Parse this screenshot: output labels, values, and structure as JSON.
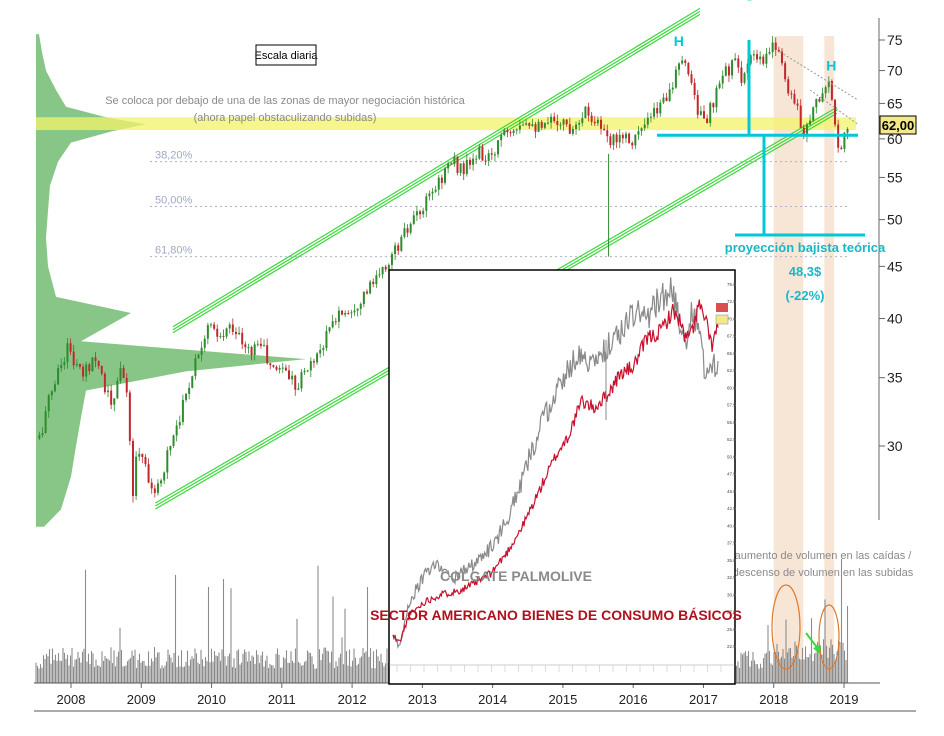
{
  "chart_data": {
    "type": "candlestick",
    "scale": "log",
    "y_axis_ticks": [
      30,
      35,
      40,
      45,
      50,
      55,
      60,
      65,
      70,
      75
    ],
    "x_axis_labels": [
      "2008",
      "2009",
      "2010",
      "2011",
      "2012",
      "2013",
      "2014",
      "2015",
      "2016",
      "2017",
      "2018",
      "2019"
    ],
    "last_price_label": "62,00",
    "colors": {
      "up": "#2e8b2e",
      "down": "#c0282d",
      "channel": "#3cd83c",
      "neckline": "#00c8d4",
      "highlight": "#f3f36a",
      "volume_profile": "#5fb35f",
      "volume": "#8c8c8c",
      "shade": "#e8b48a"
    },
    "price_path": [
      {
        "t": 2007.55,
        "p": 30.5
      },
      {
        "t": 2007.75,
        "p": 34.5
      },
      {
        "t": 2007.95,
        "p": 37.5
      },
      {
        "t": 2008.15,
        "p": 35
      },
      {
        "t": 2008.35,
        "p": 37
      },
      {
        "t": 2008.5,
        "p": 34
      },
      {
        "t": 2008.6,
        "p": 32.5
      },
      {
        "t": 2008.72,
        "p": 36.5
      },
      {
        "t": 2008.8,
        "p": 33
      },
      {
        "t": 2008.88,
        "p": 27
      },
      {
        "t": 2008.95,
        "p": 30
      },
      {
        "t": 2009.05,
        "p": 29
      },
      {
        "t": 2009.2,
        "p": 26.5
      },
      {
        "t": 2009.4,
        "p": 30
      },
      {
        "t": 2009.6,
        "p": 33
      },
      {
        "t": 2009.8,
        "p": 37
      },
      {
        "t": 2009.95,
        "p": 39.5
      },
      {
        "t": 2010.1,
        "p": 38
      },
      {
        "t": 2010.3,
        "p": 39.5
      },
      {
        "t": 2010.5,
        "p": 37
      },
      {
        "t": 2010.7,
        "p": 38
      },
      {
        "t": 2010.85,
        "p": 35.5
      },
      {
        "t": 2011.0,
        "p": 36
      },
      {
        "t": 2011.2,
        "p": 34.5
      },
      {
        "t": 2011.4,
        "p": 36
      },
      {
        "t": 2011.6,
        "p": 38
      },
      {
        "t": 2011.8,
        "p": 40.5
      },
      {
        "t": 2012.0,
        "p": 41
      },
      {
        "t": 2012.2,
        "p": 42.5
      },
      {
        "t": 2012.4,
        "p": 44
      },
      {
        "t": 2012.6,
        "p": 46.5
      },
      {
        "t": 2012.8,
        "p": 49
      },
      {
        "t": 2013.0,
        "p": 51
      },
      {
        "t": 2013.2,
        "p": 54
      },
      {
        "t": 2013.4,
        "p": 57
      },
      {
        "t": 2013.6,
        "p": 56
      },
      {
        "t": 2013.8,
        "p": 58
      },
      {
        "t": 2014.0,
        "p": 57
      },
      {
        "t": 2014.1,
        "p": 61
      },
      {
        "t": 2014.3,
        "p": 62
      },
      {
        "t": 2014.5,
        "p": 63
      },
      {
        "t": 2014.7,
        "p": 61
      },
      {
        "t": 2014.9,
        "p": 63
      },
      {
        "t": 2015.1,
        "p": 61.5
      },
      {
        "t": 2015.3,
        "p": 64
      },
      {
        "t": 2015.5,
        "p": 62.5
      },
      {
        "t": 2015.65,
        "p": 59
      },
      {
        "t": 2015.8,
        "p": 61
      },
      {
        "t": 2016.0,
        "p": 60
      },
      {
        "t": 2016.2,
        "p": 62
      },
      {
        "t": 2016.4,
        "p": 65
      },
      {
        "t": 2016.55,
        "p": 68
      },
      {
        "t": 2016.7,
        "p": 71
      },
      {
        "t": 2016.8,
        "p": 70
      },
      {
        "t": 2016.9,
        "p": 65
      },
      {
        "t": 2017.0,
        "p": 62
      },
      {
        "t": 2017.15,
        "p": 65
      },
      {
        "t": 2017.3,
        "p": 70
      },
      {
        "t": 2017.45,
        "p": 71
      },
      {
        "t": 2017.55,
        "p": 69
      },
      {
        "t": 2017.7,
        "p": 72
      },
      {
        "t": 2017.85,
        "p": 71
      },
      {
        "t": 2017.95,
        "p": 73
      },
      {
        "t": 2018.05,
        "p": 75
      },
      {
        "t": 2018.15,
        "p": 69
      },
      {
        "t": 2018.3,
        "p": 65
      },
      {
        "t": 2018.42,
        "p": 61
      },
      {
        "t": 2018.55,
        "p": 64
      },
      {
        "t": 2018.7,
        "p": 67
      },
      {
        "t": 2018.78,
        "p": 68
      },
      {
        "t": 2018.85,
        "p": 63
      },
      {
        "t": 2018.92,
        "p": 58
      },
      {
        "t": 2019.0,
        "p": 61
      },
      {
        "t": 2019.05,
        "p": 62
      }
    ],
    "volume_profile": [
      {
        "p": 62,
        "w": 110
      },
      {
        "p": 63,
        "w": 70
      },
      {
        "p": 61,
        "w": 75
      },
      {
        "p": 64.5,
        "w": 30
      },
      {
        "p": 59.5,
        "w": 35
      },
      {
        "p": 67,
        "w": 20
      },
      {
        "p": 70,
        "w": 10
      },
      {
        "p": 73,
        "w": 6
      },
      {
        "p": 76,
        "w": 3
      },
      {
        "p": 57,
        "w": 22
      },
      {
        "p": 54,
        "w": 14
      },
      {
        "p": 51,
        "w": 12
      },
      {
        "p": 48,
        "w": 10
      },
      {
        "p": 45,
        "w": 12
      },
      {
        "p": 42,
        "w": 20
      },
      {
        "p": 40.5,
        "w": 95
      },
      {
        "p": 38,
        "w": 45
      },
      {
        "p": 36.5,
        "w": 270
      },
      {
        "p": 35.5,
        "w": 150
      },
      {
        "p": 34,
        "w": 50
      },
      {
        "p": 32,
        "w": 45
      },
      {
        "p": 30,
        "w": 40
      },
      {
        "p": 28,
        "w": 35
      },
      {
        "p": 26,
        "w": 25
      },
      {
        "p": 25,
        "w": 8
      }
    ],
    "channel": {
      "upper": [
        {
          "t": 2009.45,
          "p": 39
        },
        {
          "t": 2016.95,
          "p": 80
        }
      ],
      "lower": [
        {
          "t": 2009.2,
          "p": 26.2
        },
        {
          "t": 2018.9,
          "p": 64
        }
      ]
    },
    "highlight_zone": [
      61.2,
      63
    ],
    "neckline": 60.5,
    "target_level": 48.3,
    "fibonacci": [
      {
        "label": "38,20%",
        "p": 57
      },
      {
        "label": "50,00%",
        "p": 51.5
      },
      {
        "label": "61,80%",
        "p": 46
      }
    ],
    "shaded_periods": [
      [
        2018.0,
        2018.42
      ],
      [
        2018.72,
        2018.86
      ]
    ],
    "pattern_labels": [
      {
        "label": "H",
        "t": 2016.65,
        "p": 74
      },
      {
        "label": "C",
        "t": 2017.65,
        "p": 82
      },
      {
        "label": "H",
        "t": 2018.82,
        "p": 70
      }
    ]
  },
  "annotations": {
    "scale_box": "Escala diaria",
    "zone_note_1": "Se coloca por debajo de una de las zonas de mayor negociación histórica",
    "zone_note_2": "(ahora papel obstaculizando subidas)",
    "projection_title": "proyección bajista teórica",
    "projection_value": "48,3$",
    "projection_pct": "(-22%)",
    "volume_note_1": "aumento de volumen en las caídas /",
    "volume_note_2": "descenso de volumen en las subidas"
  },
  "inset": {
    "legend_primary": "COLGATE PALMOLIVE",
    "legend_secondary": "SECTOR AMERICANO BIENES DE CONSUMO BÁSICOS",
    "colors": {
      "primary": "#8a8a8a",
      "secondary": "#c8102e"
    },
    "y_axis_ticks": [
      "75.0",
      "72.5",
      "70.0",
      "67.5",
      "65.0",
      "62.5",
      "60.0",
      "57.5",
      "55.0",
      "52.5",
      "50.0",
      "47.5",
      "45.0",
      "42.5",
      "40.0",
      "37.5",
      "35.0",
      "32.5",
      "30.0",
      "27.5",
      "25.0",
      "22.5"
    ],
    "primary_path": [
      {
        "x": 0.0,
        "v": 24
      },
      {
        "x": 0.02,
        "v": 22.5
      },
      {
        "x": 0.05,
        "v": 29
      },
      {
        "x": 0.1,
        "v": 33
      },
      {
        "x": 0.14,
        "v": 34.5
      },
      {
        "x": 0.18,
        "v": 32
      },
      {
        "x": 0.22,
        "v": 33.5
      },
      {
        "x": 0.27,
        "v": 35
      },
      {
        "x": 0.32,
        "v": 38
      },
      {
        "x": 0.38,
        "v": 44
      },
      {
        "x": 0.42,
        "v": 50
      },
      {
        "x": 0.46,
        "v": 55
      },
      {
        "x": 0.5,
        "v": 59
      },
      {
        "x": 0.54,
        "v": 63
      },
      {
        "x": 0.58,
        "v": 65
      },
      {
        "x": 0.62,
        "v": 63
      },
      {
        "x": 0.66,
        "v": 66
      },
      {
        "x": 0.7,
        "v": 68
      },
      {
        "x": 0.74,
        "v": 71
      },
      {
        "x": 0.78,
        "v": 70
      },
      {
        "x": 0.82,
        "v": 73
      },
      {
        "x": 0.86,
        "v": 74
      },
      {
        "x": 0.88,
        "v": 70
      },
      {
        "x": 0.9,
        "v": 66
      },
      {
        "x": 0.92,
        "v": 71
      },
      {
        "x": 0.94,
        "v": 69
      },
      {
        "x": 0.96,
        "v": 62
      },
      {
        "x": 0.98,
        "v": 64
      },
      {
        "x": 1.0,
        "v": 62
      }
    ],
    "secondary_path": [
      {
        "x": 0.0,
        "v": 24
      },
      {
        "x": 0.02,
        "v": 23
      },
      {
        "x": 0.05,
        "v": 27
      },
      {
        "x": 0.1,
        "v": 29
      },
      {
        "x": 0.15,
        "v": 30
      },
      {
        "x": 0.2,
        "v": 30.5
      },
      {
        "x": 0.25,
        "v": 31.5
      },
      {
        "x": 0.3,
        "v": 33
      },
      {
        "x": 0.35,
        "v": 36
      },
      {
        "x": 0.4,
        "v": 40
      },
      {
        "x": 0.45,
        "v": 45
      },
      {
        "x": 0.5,
        "v": 50
      },
      {
        "x": 0.54,
        "v": 53
      },
      {
        "x": 0.58,
        "v": 58
      },
      {
        "x": 0.62,
        "v": 57
      },
      {
        "x": 0.66,
        "v": 59
      },
      {
        "x": 0.7,
        "v": 62
      },
      {
        "x": 0.74,
        "v": 63
      },
      {
        "x": 0.78,
        "v": 67
      },
      {
        "x": 0.82,
        "v": 68
      },
      {
        "x": 0.86,
        "v": 71
      },
      {
        "x": 0.88,
        "v": 70
      },
      {
        "x": 0.9,
        "v": 67
      },
      {
        "x": 0.92,
        "v": 68
      },
      {
        "x": 0.94,
        "v": 72
      },
      {
        "x": 0.96,
        "v": 70
      },
      {
        "x": 0.98,
        "v": 66
      },
      {
        "x": 1.0,
        "v": 69
      }
    ]
  }
}
